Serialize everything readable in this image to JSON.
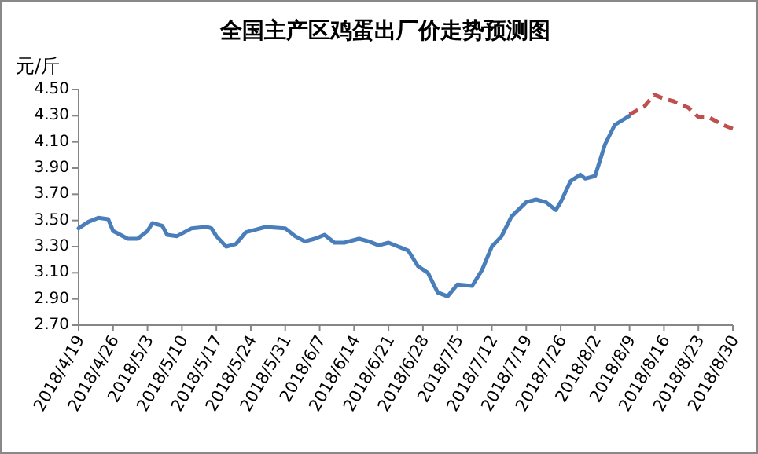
{
  "chart_data": {
    "type": "line",
    "title": "全国主产区鸡蛋出厂价走势预测图",
    "ylabel": "元/斤",
    "ylim": [
      2.7,
      4.5
    ],
    "yticks": [
      {
        "value": 2.7,
        "label": "2.70"
      },
      {
        "value": 2.9,
        "label": "2.90"
      },
      {
        "value": 3.1,
        "label": "3.10"
      },
      {
        "value": 3.3,
        "label": "3.30"
      },
      {
        "value": 3.5,
        "label": "3.50"
      },
      {
        "value": 3.7,
        "label": "3.70"
      },
      {
        "value": 3.9,
        "label": "3.90"
      },
      {
        "value": 4.1,
        "label": "4.10"
      },
      {
        "value": 4.3,
        "label": "4.30"
      },
      {
        "value": 4.5,
        "label": "4.50"
      }
    ],
    "xlim": [
      "2018-04-19",
      "2018-08-30"
    ],
    "xticks": [
      {
        "value": "2018-04-19",
        "label": "2018/4/19"
      },
      {
        "value": "2018-04-26",
        "label": "2018/4/26"
      },
      {
        "value": "2018-05-03",
        "label": "2018/5/3"
      },
      {
        "value": "2018-05-10",
        "label": "2018/5/10"
      },
      {
        "value": "2018-05-17",
        "label": "2018/5/17"
      },
      {
        "value": "2018-05-24",
        "label": "2018/5/24"
      },
      {
        "value": "2018-05-31",
        "label": "2018/5/31"
      },
      {
        "value": "2018-06-07",
        "label": "2018/6/7"
      },
      {
        "value": "2018-06-14",
        "label": "2018/6/14"
      },
      {
        "value": "2018-06-21",
        "label": "2018/6/21"
      },
      {
        "value": "2018-06-28",
        "label": "2018/6/28"
      },
      {
        "value": "2018-07-05",
        "label": "2018/7/5"
      },
      {
        "value": "2018-07-12",
        "label": "2018/7/12"
      },
      {
        "value": "2018-07-19",
        "label": "2018/7/19"
      },
      {
        "value": "2018-07-26",
        "label": "2018/7/26"
      },
      {
        "value": "2018-08-02",
        "label": "2018/8/2"
      },
      {
        "value": "2018-08-09",
        "label": "2018/8/9"
      },
      {
        "value": "2018-08-16",
        "label": "2018/8/16"
      },
      {
        "value": "2018-08-23",
        "label": "2018/8/23"
      },
      {
        "value": "2018-08-30",
        "label": "2018/8/30"
      }
    ],
    "grid": false,
    "series": [
      {
        "color": "#4a7ebb",
        "line_style": "solid",
        "x": [
          "2018-04-19",
          "2018-04-21",
          "2018-04-23",
          "2018-04-25",
          "2018-04-26",
          "2018-04-29",
          "2018-05-01",
          "2018-05-03",
          "2018-05-04",
          "2018-05-06",
          "2018-05-07",
          "2018-05-09",
          "2018-05-12",
          "2018-05-15",
          "2018-05-16",
          "2018-05-17",
          "2018-05-19",
          "2018-05-21",
          "2018-05-23",
          "2018-05-25",
          "2018-05-27",
          "2018-05-31",
          "2018-06-02",
          "2018-06-04",
          "2018-06-06",
          "2018-06-08",
          "2018-06-10",
          "2018-06-12",
          "2018-06-15",
          "2018-06-17",
          "2018-06-19",
          "2018-06-21",
          "2018-06-25",
          "2018-06-27",
          "2018-06-29",
          "2018-07-01",
          "2018-07-03",
          "2018-07-05",
          "2018-07-08",
          "2018-07-10",
          "2018-07-12",
          "2018-07-14",
          "2018-07-16",
          "2018-07-19",
          "2018-07-21",
          "2018-07-23",
          "2018-07-25",
          "2018-07-26",
          "2018-07-28",
          "2018-07-30",
          "2018-07-31",
          "2018-08-02",
          "2018-08-04",
          "2018-08-06",
          "2018-08-09"
        ],
        "values": [
          3.44,
          3.49,
          3.52,
          3.51,
          3.42,
          3.36,
          3.36,
          3.42,
          3.48,
          3.46,
          3.39,
          3.38,
          3.44,
          3.45,
          3.44,
          3.38,
          3.3,
          3.32,
          3.41,
          3.43,
          3.45,
          3.44,
          3.38,
          3.34,
          3.36,
          3.39,
          3.33,
          3.33,
          3.36,
          3.34,
          3.31,
          3.33,
          3.27,
          3.15,
          3.1,
          2.95,
          2.92,
          3.01,
          3.0,
          3.12,
          3.3,
          3.38,
          3.53,
          3.64,
          3.66,
          3.64,
          3.58,
          3.64,
          3.8,
          3.85,
          3.82,
          3.84,
          4.08,
          4.23,
          4.3
        ]
      },
      {
        "color": "#c0504d",
        "line_style": "dashed",
        "x": [
          "2018-08-09",
          "2018-08-12",
          "2018-08-14",
          "2018-08-16",
          "2018-08-18",
          "2018-08-21",
          "2018-08-23",
          "2018-08-25",
          "2018-08-28",
          "2018-08-30"
        ],
        "values": [
          4.31,
          4.37,
          4.46,
          4.43,
          4.41,
          4.36,
          4.29,
          4.29,
          4.23,
          4.2
        ]
      }
    ]
  }
}
